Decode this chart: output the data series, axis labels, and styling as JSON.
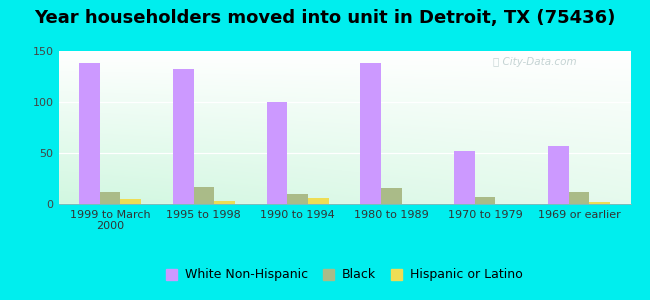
{
  "title": "Year householders moved into unit in Detroit, TX (75436)",
  "categories": [
    "1999 to March\n2000",
    "1995 to 1998",
    "1990 to 1994",
    "1980 to 1989",
    "1970 to 1979",
    "1969 or earlier"
  ],
  "white_non_hispanic": [
    138,
    132,
    100,
    138,
    52,
    57
  ],
  "black": [
    12,
    17,
    10,
    16,
    7,
    12
  ],
  "hispanic_or_latino": [
    5,
    3,
    6,
    0,
    0,
    2
  ],
  "white_color": "#cc99ff",
  "black_color": "#aabb88",
  "hispanic_color": "#eedd55",
  "background_color": "#00eeee",
  "ylim": [
    0,
    150
  ],
  "yticks": [
    0,
    50,
    100,
    150
  ],
  "bar_width": 0.22,
  "title_fontsize": 13,
  "tick_fontsize": 8,
  "legend_fontsize": 9
}
